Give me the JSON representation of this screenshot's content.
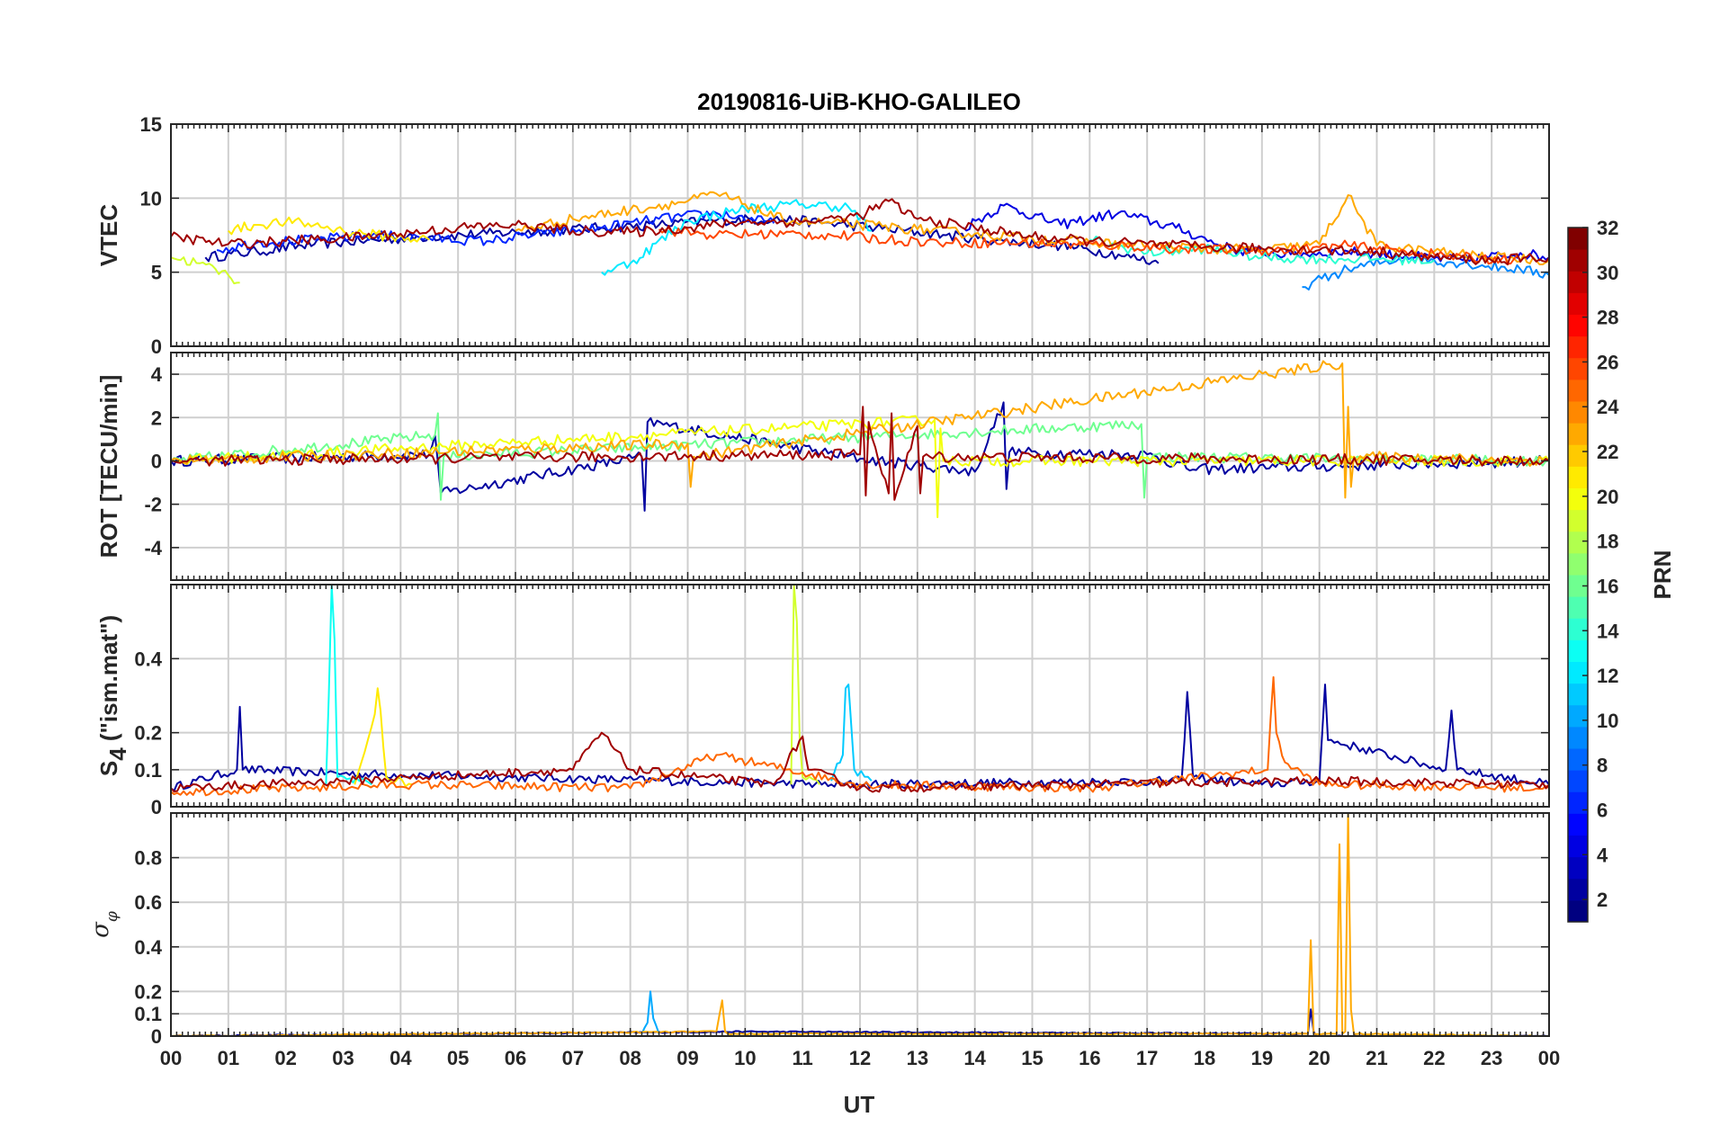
{
  "chart_data": {
    "type": "line",
    "title": "20190816-UiB-KHO-GALILEO",
    "xlabel": "UT",
    "x_tick_labels": [
      "00",
      "01",
      "02",
      "03",
      "04",
      "05",
      "06",
      "07",
      "08",
      "09",
      "10",
      "11",
      "12",
      "13",
      "14",
      "15",
      "16",
      "17",
      "18",
      "19",
      "20",
      "21",
      "22",
      "23",
      "00"
    ],
    "xlim": [
      0,
      24
    ],
    "grid": true,
    "colorbar": {
      "label": "PRN",
      "range": [
        1,
        32
      ],
      "ticks": [
        "2",
        "4",
        "6",
        "8",
        "10",
        "12",
        "14",
        "16",
        "18",
        "20",
        "22",
        "24",
        "26",
        "28",
        "30",
        "32"
      ],
      "colormap": "jet"
    },
    "panels": [
      {
        "ylabel": "VTEC",
        "ylim": [
          0,
          15
        ],
        "y_tick_labels": [
          "0",
          "5",
          "10",
          "15"
        ],
        "series": [
          {
            "prn": 2,
            "x": [
              0.6,
              1.5,
              2.5,
              3.3,
              4.5,
              5.5,
              6.5,
              7.5,
              8.5,
              9.5,
              10.5,
              11.5,
              12.5,
              13.5,
              14.5,
              15.5,
              16.5,
              17.2
            ],
            "y": [
              6.0,
              6.4,
              6.9,
              7.1,
              7.4,
              7.6,
              7.8,
              8.0,
              8.2,
              8.5,
              8.6,
              8.3,
              7.9,
              7.5,
              7.1,
              6.8,
              6.2,
              5.6
            ]
          },
          {
            "prn": 4,
            "x": [
              13.8,
              14.5,
              15.5,
              16.5,
              17.5,
              18.5,
              19.5,
              20.5,
              21.5,
              22.5,
              23.5,
              24.0
            ],
            "y": [
              8.0,
              9.5,
              8.2,
              9.0,
              8.0,
              6.5,
              6.2,
              6.4,
              6.1,
              5.8,
              6.3,
              6.0
            ]
          },
          {
            "prn": 6,
            "x": [
              0.8,
              1.5,
              2.5,
              3.5,
              4.5,
              5.5,
              6.5,
              7.5,
              8.5,
              9.5,
              10.5
            ],
            "y": [
              6.5,
              7.0,
              7.2,
              7.5,
              7.3,
              7.1,
              7.6,
              8.0,
              8.6,
              9.0,
              8.3
            ]
          },
          {
            "prn": 9,
            "x": [
              19.7,
              20.5,
              21.5,
              22.5,
              23.5,
              24.0
            ],
            "y": [
              4.0,
              5.2,
              6.0,
              5.6,
              5.2,
              4.8
            ]
          },
          {
            "prn": 12,
            "x": [
              7.5,
              8.0,
              9.0,
              10.0,
              11.0,
              11.8,
              12.2
            ],
            "y": [
              5.0,
              5.6,
              8.5,
              9.3,
              9.6,
              9.4,
              7.8
            ]
          },
          {
            "prn": 14,
            "x": [
              16.0,
              17.0,
              18.0,
              19.0,
              20.0,
              21.0,
              22.0
            ],
            "y": [
              7.2,
              6.3,
              6.6,
              6.0,
              5.9,
              5.9,
              5.8
            ]
          },
          {
            "prn": 19,
            "x": [
              0.0,
              0.5,
              1.0,
              1.2
            ],
            "y": [
              6.0,
              5.6,
              4.8,
              4.3
            ]
          },
          {
            "prn": 21,
            "x": [
              1.0,
              1.5,
              2.0,
              2.5,
              3.0,
              3.8,
              4.5
            ],
            "y": [
              7.8,
              8.2,
              8.4,
              8.2,
              7.8,
              7.4,
              7.2
            ]
          },
          {
            "prn": 23,
            "x": [
              6.0,
              7.0,
              8.0,
              9.0,
              9.5,
              10.0,
              10.5,
              11.0,
              12.0,
              13.0,
              14.0,
              15.0,
              16.0,
              17.0,
              18.0,
              19.0,
              20.0,
              20.5,
              21.0,
              22.0,
              23.0,
              24.0
            ],
            "y": [
              7.8,
              8.6,
              9.2,
              9.8,
              10.3,
              9.6,
              8.7,
              8.4,
              8.2,
              7.9,
              7.6,
              7.3,
              7.0,
              6.8,
              6.6,
              6.5,
              6.9,
              10.2,
              6.8,
              6.4,
              6.0,
              5.8
            ]
          },
          {
            "prn": 26,
            "x": [
              8.5,
              9.5,
              10.5,
              11.5,
              12.5,
              13.5,
              14.5,
              15.5,
              16.5,
              17.5,
              18.5,
              19.5,
              20.5,
              21.5,
              22.5,
              23.5
            ],
            "y": [
              7.9,
              7.5,
              7.6,
              7.5,
              7.2,
              7.0,
              7.0,
              6.9,
              6.8,
              6.6,
              6.5,
              6.5,
              6.8,
              6.4,
              6.0,
              5.8
            ]
          },
          {
            "prn": 31,
            "x": [
              0.0,
              1.0,
              2.0,
              3.0,
              4.0,
              5.0,
              6.0,
              7.0,
              8.0,
              9.0,
              10.0,
              11.0,
              12.0,
              12.5,
              13.0,
              14.0,
              15.0,
              16.0,
              17.0,
              18.0,
              19.0,
              20.0,
              21.0,
              22.0,
              23.0,
              24.0
            ],
            "y": [
              7.4,
              6.9,
              7.1,
              7.3,
              7.6,
              8.0,
              8.2,
              7.8,
              7.7,
              8.0,
              8.4,
              8.4,
              8.8,
              9.8,
              8.6,
              8.0,
              7.4,
              7.1,
              6.9,
              6.7,
              6.6,
              6.5,
              6.4,
              6.0,
              5.8,
              6.0
            ]
          }
        ]
      },
      {
        "ylabel": "ROT [TECU/min]",
        "ylim": [
          -5.5,
          5
        ],
        "y_tick_labels": [
          "-4",
          "-2",
          "0",
          "2",
          "4"
        ],
        "series": [
          {
            "prn": 2,
            "x": [
              0.0,
              4.5,
              4.6,
              4.7,
              8.2,
              8.25,
              8.3,
              12.0,
              14.0,
              14.5,
              14.55,
              14.6,
              17.0,
              17.8,
              24.0
            ],
            "y": [
              0.0,
              0.3,
              1.2,
              -1.5,
              0.2,
              -2.3,
              1.8,
              0.1,
              -0.5,
              2.7,
              -1.3,
              0.4,
              0.3,
              -0.4,
              0.0
            ]
          },
          {
            "prn": 16,
            "x": [
              0.0,
              4.6,
              4.65,
              4.7,
              4.75,
              16.9,
              16.95,
              17.0,
              24.0
            ],
            "y": [
              0.0,
              1.2,
              2.2,
              -1.8,
              0.2,
              1.7,
              -1.7,
              0.2,
              0.0
            ]
          },
          {
            "prn": 20,
            "x": [
              0.0,
              13.3,
              13.35,
              13.4,
              13.45,
              24.0
            ],
            "y": [
              0.0,
              1.9,
              -2.6,
              1.5,
              0.0,
              0.0
            ]
          },
          {
            "prn": 23,
            "x": [
              0.0,
              9.0,
              9.05,
              9.1,
              20.4,
              20.45,
              20.5,
              20.55,
              20.6,
              24.0
            ],
            "y": [
              0.0,
              0.8,
              -1.2,
              0.2,
              4.5,
              -1.7,
              2.5,
              -1.2,
              0.2,
              0.0
            ]
          },
          {
            "prn": 31,
            "x": [
              0.0,
              12.0,
              12.05,
              12.1,
              12.15,
              12.5,
              12.55,
              12.6,
              13.0,
              13.05,
              13.1,
              24.0
            ],
            "y": [
              0.0,
              0.3,
              2.5,
              -1.6,
              1.8,
              -1.5,
              2.2,
              -1.8,
              1.6,
              -1.5,
              0.2,
              0.0
            ]
          }
        ]
      },
      {
        "ylabel": "S4 (\"ism.mat\")",
        "ylabel_main": "S",
        "ylabel_sub": "4",
        "ylabel_rest": " (\"ism.mat\")",
        "ylim": [
          0,
          0.6
        ],
        "y_tick_labels": [
          "0",
          "0.1",
          "0.2",
          "0.4"
        ],
        "series": [
          {
            "prn": 2,
            "x": [
              0.0,
              1.15,
              1.2,
              1.25,
              3.0,
              11.5,
              17.6,
              17.7,
              17.8,
              19.0,
              20.0,
              20.1,
              20.15,
              22.2,
              22.3,
              22.4,
              24.0
            ],
            "y": [
              0.05,
              0.1,
              0.27,
              0.1,
              0.09,
              0.06,
              0.07,
              0.31,
              0.08,
              0.06,
              0.07,
              0.33,
              0.18,
              0.1,
              0.26,
              0.1,
              0.06
            ]
          },
          {
            "prn": 13,
            "x": [
              2.7,
              2.75,
              2.8,
              2.85,
              2.9,
              3.5
            ],
            "y": [
              0.06,
              0.3,
              0.6,
              0.45,
              0.08,
              0.06
            ]
          },
          {
            "prn": 11,
            "x": [
              11.5,
              11.7,
              11.75,
              11.8,
              11.9,
              12.2
            ],
            "y": [
              0.07,
              0.14,
              0.32,
              0.33,
              0.1,
              0.07
            ]
          },
          {
            "prn": 19,
            "x": [
              10.8,
              10.85,
              10.9,
              10.95,
              11.0,
              11.3
            ],
            "y": [
              0.06,
              0.6,
              0.5,
              0.18,
              0.08,
              0.06
            ]
          },
          {
            "prn": 21,
            "x": [
              3.2,
              3.55,
              3.6,
              3.65,
              3.75,
              4.2
            ],
            "y": [
              0.06,
              0.25,
              0.32,
              0.26,
              0.08,
              0.06
            ]
          },
          {
            "prn": 25,
            "x": [
              0.0,
              4.2,
              8.0,
              9.5,
              12.0,
              16.0,
              19.1,
              19.2,
              19.25,
              19.4,
              20.0,
              24.0
            ],
            "y": [
              0.04,
              0.06,
              0.05,
              0.14,
              0.06,
              0.05,
              0.1,
              0.35,
              0.2,
              0.12,
              0.06,
              0.05
            ]
          },
          {
            "prn": 31,
            "x": [
              0.0,
              3.0,
              7.0,
              7.5,
              8.0,
              10.5,
              11.0,
              11.1,
              12.0,
              16.0,
              20.0,
              24.0
            ],
            "y": [
              0.05,
              0.07,
              0.1,
              0.2,
              0.1,
              0.06,
              0.19,
              0.1,
              0.05,
              0.06,
              0.07,
              0.06
            ]
          }
        ]
      },
      {
        "ylabel": "σ φ",
        "ylabel_main": "σ",
        "ylabel_sub": "φ",
        "ylim": [
          0,
          1
        ],
        "y_tick_labels": [
          "0",
          "0.1",
          "0.2",
          "0.4",
          "0.6",
          "0.8"
        ],
        "series": [
          {
            "prn": 2,
            "x": [
              0.0,
              10.0,
              19.8,
              19.85,
              19.9,
              19.95,
              24.0
            ],
            "y": [
              0.0,
              0.02,
              0.01,
              0.12,
              0.02,
              0.0,
              0.0
            ]
          },
          {
            "prn": 10,
            "x": [
              8.2,
              8.3,
              8.35,
              8.4,
              8.5
            ],
            "y": [
              0.01,
              0.06,
              0.2,
              0.08,
              0.01
            ]
          },
          {
            "prn": 23,
            "x": [
              0.0,
              9.5,
              9.6,
              9.65,
              9.7,
              19.8,
              19.85,
              19.9,
              20.3,
              20.35,
              20.4,
              20.45,
              20.5,
              20.55,
              20.6,
              24.0
            ],
            "y": [
              0.0,
              0.02,
              0.16,
              0.02,
              0.01,
              0.01,
              0.43,
              0.01,
              0.01,
              0.86,
              0.01,
              0.02,
              1.0,
              0.12,
              0.01,
              0.0
            ]
          }
        ]
      }
    ]
  }
}
